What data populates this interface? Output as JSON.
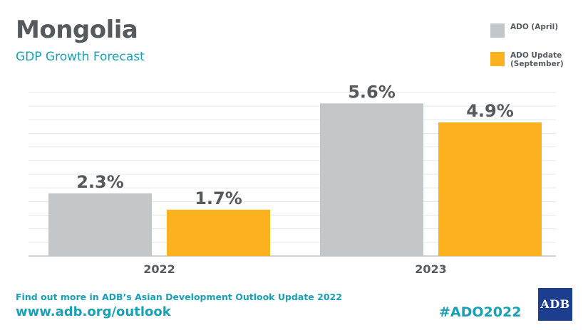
{
  "header": {
    "title": "Mongolia",
    "subtitle": "GDP Growth Forecast"
  },
  "legend": [
    {
      "label": "ADO (April)",
      "color": "#c4c7ca"
    },
    {
      "label": "ADO Update\n(September)",
      "color": "#fbb21e"
    }
  ],
  "chart_data": {
    "type": "bar",
    "title": "Mongolia",
    "subtitle": "GDP Growth Forecast",
    "categories": [
      "2022",
      "2023"
    ],
    "series": [
      {
        "name": "ADO (April)",
        "values": [
          2.3,
          5.6
        ],
        "labels": [
          "2.3%",
          "5.6%"
        ],
        "color": "#c4c7ca"
      },
      {
        "name": "ADO Update (September)",
        "values": [
          1.7,
          4.9
        ],
        "labels": [
          "1.7%",
          "4.9%"
        ],
        "color": "#fbb21e"
      }
    ],
    "ylim": [
      0,
      6
    ],
    "grid": true,
    "legend_position": "top-right"
  },
  "footer": {
    "text": "Find out more in ADB’s Asian Development Outlook Update 2022",
    "url": "www.adb.org/outlook",
    "hashtag": "#ADO2022",
    "logo": "ADB"
  }
}
